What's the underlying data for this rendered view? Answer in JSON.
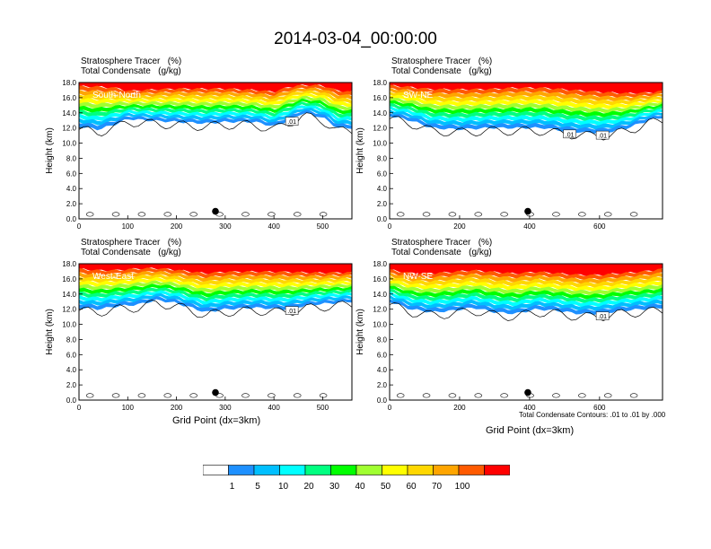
{
  "main_title": "2014-03-04_00:00:00",
  "panel_header": {
    "line1": "Stratosphere Tracer   (%)",
    "line2": "Total Condensate   (g/kg)"
  },
  "x_axis_title": "Grid Point (dx=3km)",
  "contour_note": "Total Condensate Contours: .01 to .01 by .000",
  "colors": {
    "levels": [
      "#ffffff",
      "#1e90ff",
      "#00bfff",
      "#00ffff",
      "#00ff80",
      "#00ff00",
      "#a0ff30",
      "#ffff00",
      "#ffd700",
      "#ffa500",
      "#ff5a00",
      "#ff0000"
    ],
    "contour": "#000000",
    "marker": "#000000"
  },
  "colorbar_labels": [
    "1",
    "5",
    "10",
    "20",
    "30",
    "40",
    "50",
    "60",
    "70",
    "100"
  ],
  "chart_data": [
    {
      "type": "heatmap",
      "title": "South-North",
      "ylabel": "Height (km)",
      "xlim": [
        0,
        560
      ],
      "ylim": [
        0,
        18
      ],
      "xticks": [
        "0",
        "100",
        "200",
        "300",
        "400",
        "500"
      ],
      "yticks": [
        "0.0",
        "2.0",
        "4.0",
        "6.0",
        "8.0",
        "10.0",
        "12.0",
        "14.0",
        "16.0",
        "18.0"
      ],
      "contour_labels": [
        ".01"
      ],
      "marker": {
        "x": 280,
        "y": 1.0
      },
      "profile": {
        "x": [
          0,
          40,
          80,
          100,
          140,
          200,
          260,
          300,
          360,
          400,
          430,
          460,
          500,
          530,
          560
        ],
        "base_km": [
          12.2,
          11.8,
          12.6,
          13.2,
          13.0,
          12.8,
          12.6,
          12.8,
          12.8,
          12.2,
          13.0,
          14.0,
          13.4,
          12.0,
          12.0
        ],
        "high_km": [
          16.4,
          16.4,
          16.1,
          15.6,
          15.8,
          16.0,
          16.0,
          16.0,
          15.8,
          15.6,
          16.2,
          16.4,
          16.4,
          15.8,
          15.6
        ]
      }
    },
    {
      "type": "heatmap",
      "title": "SW-NE",
      "ylabel": "Height (km)",
      "xlim": [
        0,
        780
      ],
      "ylim": [
        0,
        18
      ],
      "xticks": [
        "0",
        "200",
        "400",
        "600"
      ],
      "yticks": [
        "0.0",
        "2.0",
        "4.0",
        "6.0",
        "8.0",
        "10.0",
        "12.0",
        "14.0",
        "16.0",
        "18.0"
      ],
      "contour_labels": [
        ".01",
        ".01"
      ],
      "marker": {
        "x": 395,
        "y": 1.0
      },
      "profile": {
        "x": [
          0,
          60,
          120,
          200,
          280,
          360,
          440,
          500,
          560,
          620,
          680,
          740,
          780
        ],
        "base_km": [
          13.6,
          13.0,
          12.0,
          11.8,
          12.0,
          12.0,
          12.0,
          11.6,
          11.4,
          11.4,
          12.0,
          13.0,
          13.4
        ],
        "high_km": [
          16.4,
          16.2,
          16.0,
          16.0,
          16.0,
          16.2,
          16.2,
          16.0,
          15.8,
          15.6,
          15.4,
          15.4,
          15.6
        ]
      }
    },
    {
      "type": "heatmap",
      "title": "West-East",
      "ylabel": "Height (km)",
      "xlim": [
        0,
        560
      ],
      "ylim": [
        0,
        18
      ],
      "xticks": [
        "0",
        "100",
        "200",
        "300",
        "400",
        "500"
      ],
      "yticks": [
        "0.0",
        "2.0",
        "4.0",
        "6.0",
        "8.0",
        "10.0",
        "12.0",
        "14.0",
        "16.0",
        "18.0"
      ],
      "contour_labels": [
        ".01"
      ],
      "marker": {
        "x": 280,
        "y": 1.0
      },
      "profile": {
        "x": [
          0,
          40,
          80,
          120,
          160,
          200,
          260,
          300,
          360,
          420,
          480,
          560
        ],
        "base_km": [
          12.2,
          12.0,
          12.4,
          12.6,
          13.2,
          12.8,
          11.6,
          12.0,
          12.2,
          12.0,
          12.6,
          13.0
        ],
        "high_km": [
          16.2,
          16.0,
          16.0,
          16.2,
          16.2,
          16.0,
          15.6,
          15.8,
          15.8,
          15.8,
          15.6,
          15.6
        ]
      }
    },
    {
      "type": "heatmap",
      "title": "NW-SE",
      "ylabel": "Height (km)",
      "xlim": [
        0,
        780
      ],
      "ylim": [
        0,
        18
      ],
      "xticks": [
        "0",
        "200",
        "400",
        "600"
      ],
      "yticks": [
        "0.0",
        "2.0",
        "4.0",
        "6.0",
        "8.0",
        "10.0",
        "12.0",
        "14.0",
        "16.0",
        "18.0"
      ],
      "contour_labels": [
        ".01"
      ],
      "marker": {
        "x": 395,
        "y": 1.0
      },
      "profile": {
        "x": [
          0,
          60,
          120,
          180,
          240,
          300,
          360,
          420,
          480,
          540,
          600,
          660,
          720,
          780
        ],
        "base_km": [
          13.0,
          12.0,
          11.6,
          11.8,
          12.2,
          11.6,
          11.4,
          12.0,
          11.8,
          11.4,
          11.4,
          11.8,
          12.0,
          12.2
        ],
        "high_km": [
          16.0,
          15.6,
          15.6,
          15.8,
          16.0,
          15.8,
          15.6,
          15.8,
          15.6,
          15.4,
          15.4,
          15.6,
          15.8,
          16.2
        ]
      }
    }
  ]
}
